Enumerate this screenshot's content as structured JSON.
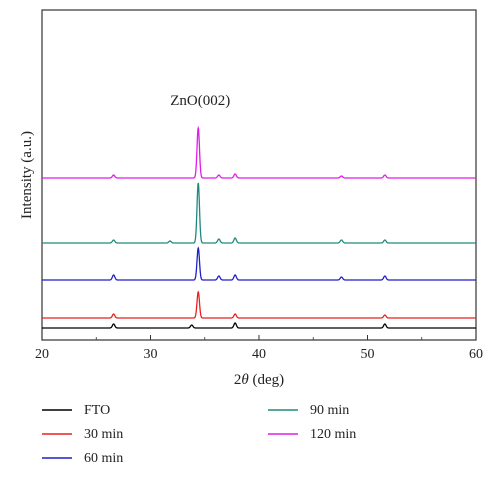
{
  "chart_data": {
    "type": "line",
    "title": "",
    "xlabel": "2θ (deg)",
    "xlabel_italic_symbol": "θ",
    "ylabel": "Intensity (a.u.)",
    "xlim": [
      20,
      60
    ],
    "xticks": [
      20,
      30,
      40,
      50,
      60
    ],
    "yticks_shown": false,
    "grid": false,
    "legend_position": "bottom",
    "annotations": [
      {
        "text": "ZnO(002)",
        "x": 34.4
      }
    ],
    "series_note": "y values in arbitrary units; each series drawn with a vertical offset (baseline) as in the figure",
    "series": [
      {
        "name": "FTO",
        "color": "#000000",
        "baseline": 0,
        "peaks": [
          [
            26.6,
            4
          ],
          [
            33.8,
            3
          ],
          [
            37.8,
            5
          ],
          [
            51.6,
            4
          ]
        ]
      },
      {
        "name": "30 min",
        "color": "#e8211f",
        "baseline": 10,
        "peaks": [
          [
            26.6,
            4
          ],
          [
            34.4,
            26
          ],
          [
            37.8,
            4
          ],
          [
            51.6,
            3
          ]
        ]
      },
      {
        "name": "60 min",
        "color": "#1f1fc8",
        "baseline": 48,
        "peaks": [
          [
            26.6,
            5
          ],
          [
            34.4,
            32
          ],
          [
            36.3,
            4
          ],
          [
            37.8,
            5
          ],
          [
            47.6,
            3
          ],
          [
            51.6,
            4
          ]
        ]
      },
      {
        "name": "90 min",
        "color": "#1f8a7c",
        "baseline": 85,
        "peaks": [
          [
            26.6,
            3
          ],
          [
            31.8,
            2
          ],
          [
            34.4,
            60
          ],
          [
            36.3,
            4
          ],
          [
            37.8,
            5
          ],
          [
            47.6,
            3
          ],
          [
            51.6,
            3
          ]
        ]
      },
      {
        "name": "120 min",
        "color": "#e21be8",
        "baseline": 150,
        "peaks": [
          [
            26.6,
            3
          ],
          [
            34.4,
            50
          ],
          [
            36.3,
            3
          ],
          [
            37.8,
            4
          ],
          [
            47.6,
            2
          ],
          [
            51.6,
            3
          ]
        ]
      }
    ]
  }
}
